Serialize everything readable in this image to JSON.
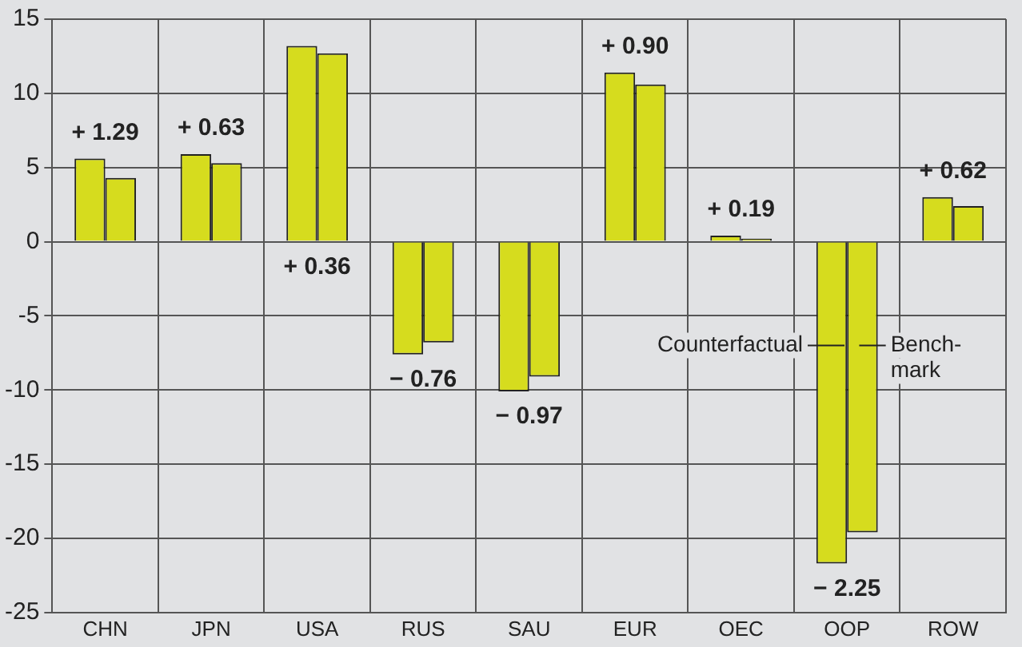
{
  "chart_data": {
    "type": "bar",
    "categories": [
      "CHN",
      "JPN",
      "USA",
      "RUS",
      "SAU",
      "EUR",
      "OEC",
      "OOP",
      "ROW"
    ],
    "series": [
      {
        "name": "Counterfactual",
        "color": "#d6dc1e",
        "values": [
          5.6,
          5.9,
          13.2,
          -7.6,
          -10.1,
          11.4,
          0.4,
          -21.7,
          3.0
        ]
      },
      {
        "name": "Bench-\nmark",
        "color": "#d6dc1e",
        "values": [
          4.3,
          5.3,
          12.7,
          -6.8,
          -9.1,
          10.6,
          0.2,
          -19.6,
          2.4
        ]
      }
    ],
    "ylim": [
      -25,
      15
    ],
    "yticks": [
      -25,
      -20,
      -15,
      -10,
      -5,
      0,
      5,
      10,
      15
    ],
    "grid": true,
    "annotations": [
      "+ 1.29",
      "+ 0.63",
      "+ 0.36",
      "− 0.76",
      "− 0.97",
      "+ 0.90",
      "+ 0.19",
      "− 2.25",
      "+ 0.62"
    ]
  }
}
